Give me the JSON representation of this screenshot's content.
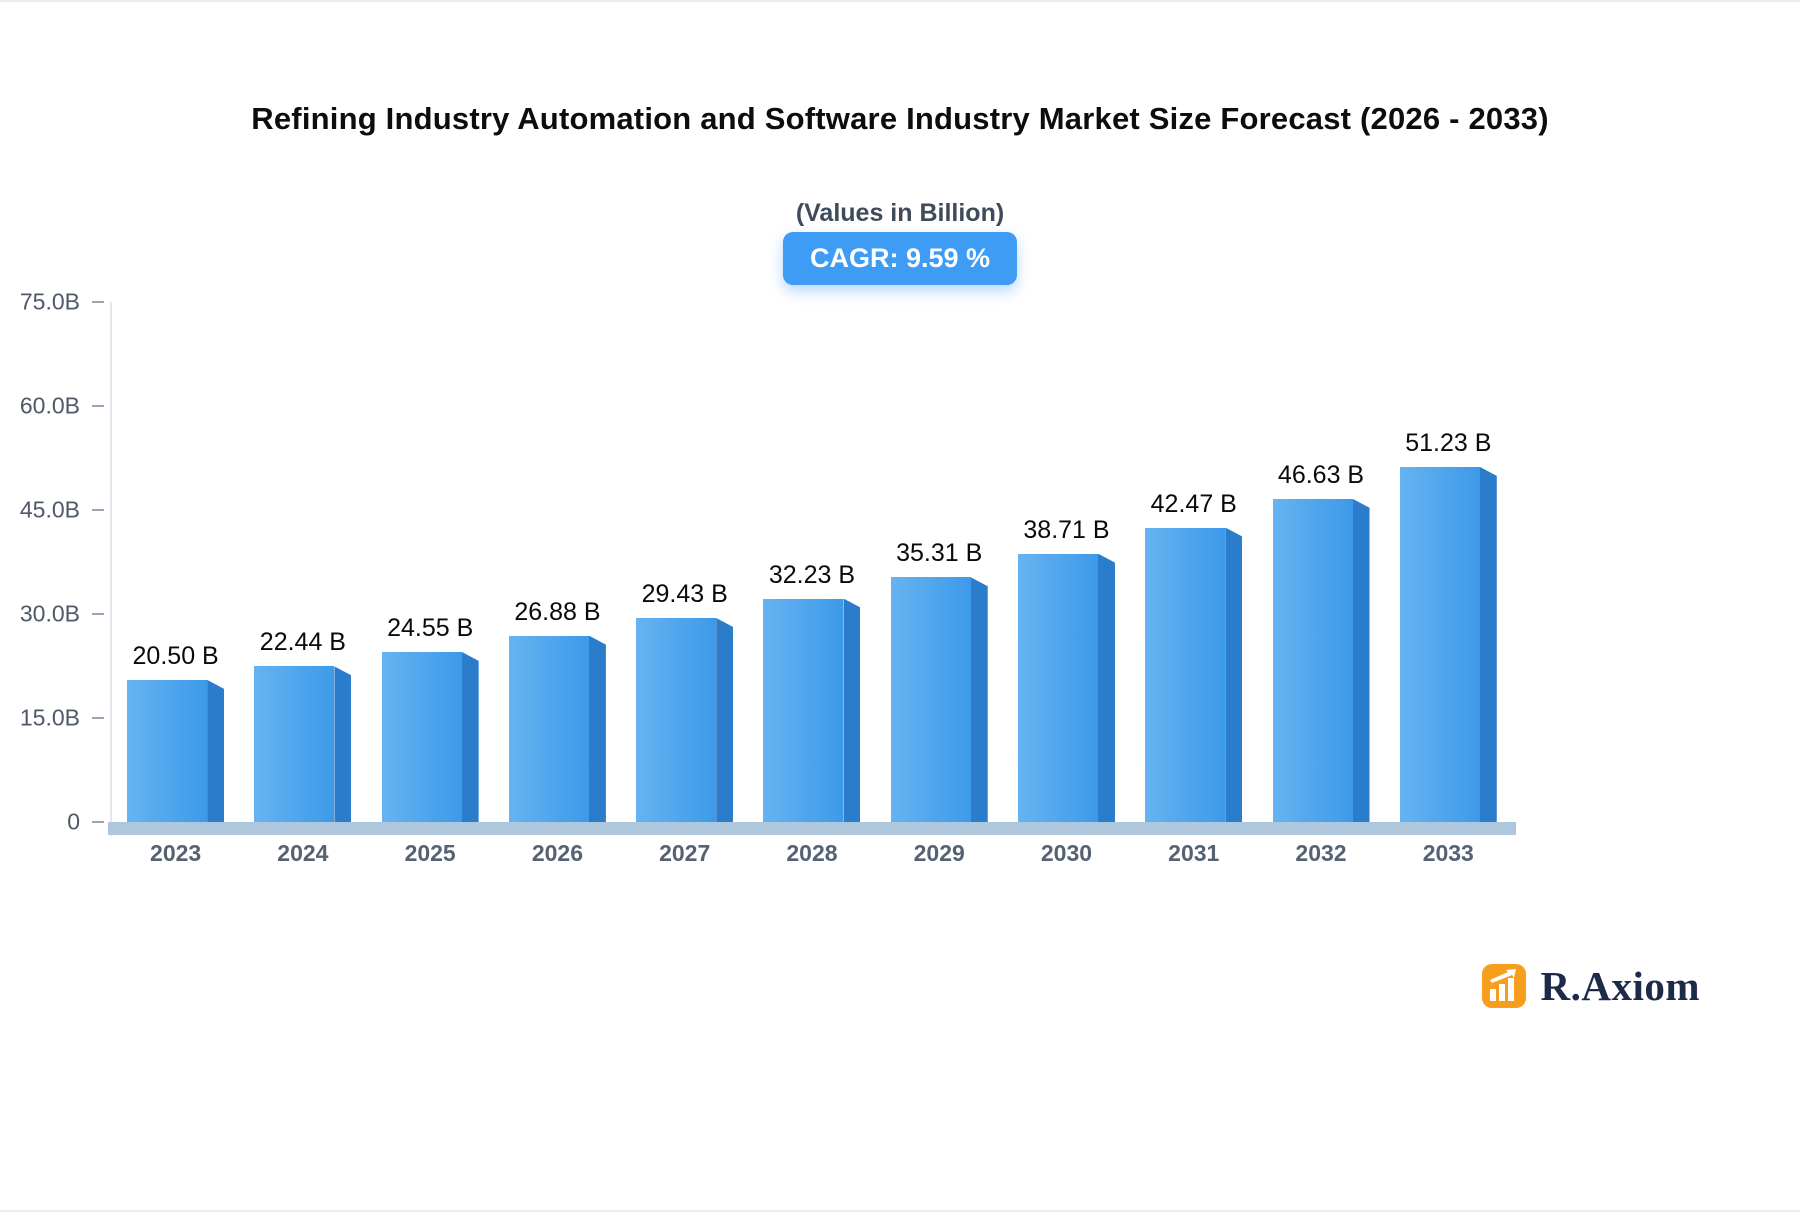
{
  "title": "Refining Industry Automation and Software Industry Market Size Forecast (2026 - 2033)",
  "subtitle": "(Values in Billion)",
  "cagr_badge": "CAGR: 9.59 %",
  "branding": {
    "name": "R.Axiom",
    "icon": "bar-chart-logo-icon",
    "icon_color": "#F79E1C",
    "text_color": "#1C2B4A"
  },
  "colors": {
    "bar_front": "#3D9AE9",
    "bar_light": "#67B3F1",
    "bar_side": "#2B7CCB",
    "floor": "#AFC7DC",
    "badge_bg": "#3E9CF5",
    "axis_text": "#4E5869",
    "value_text": "#0A0A0A"
  },
  "chart_data": {
    "type": "bar",
    "title": "Refining Industry Automation and Software Industry Market Size Forecast (2026 - 2033)",
    "subtitle": "(Values in Billion)",
    "categories": [
      "2023",
      "2024",
      "2025",
      "2026",
      "2027",
      "2028",
      "2029",
      "2030",
      "2031",
      "2032",
      "2033"
    ],
    "values": [
      20.5,
      22.44,
      24.55,
      26.88,
      29.43,
      32.23,
      35.31,
      38.71,
      42.47,
      46.63,
      51.23
    ],
    "value_labels": [
      "20.50 B",
      "22.44 B",
      "24.55 B",
      "26.88 B",
      "29.43 B",
      "32.23 B",
      "35.31 B",
      "38.71 B",
      "42.47 B",
      "46.63 B",
      "51.23 B"
    ],
    "unit": "Billion USD",
    "xlabel": "",
    "ylabel": "",
    "ylim": [
      0,
      75
    ],
    "yticks": [
      {
        "label": "75.0B",
        "value": 75
      },
      {
        "label": "60.0B",
        "value": 60
      },
      {
        "label": "45.0B",
        "value": 45
      },
      {
        "label": "30.0B",
        "value": 30
      },
      {
        "label": "15.0B",
        "value": 15
      },
      {
        "label": "0",
        "value": 0
      }
    ],
    "grid": false,
    "legend_position": "none",
    "cagr": "9.59 %"
  }
}
